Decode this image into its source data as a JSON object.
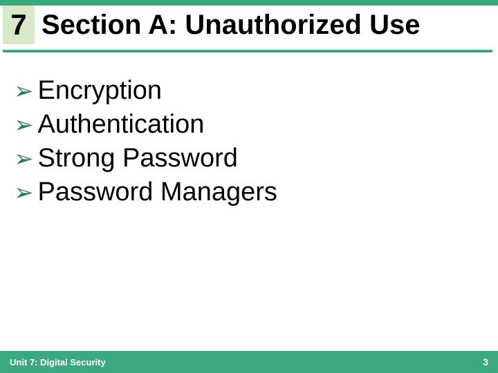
{
  "colors": {
    "top_bar": "#3aa97f",
    "chapter_box_bg": "#d8e9c8",
    "header_line": "#3aa97f",
    "bullet_icon": "#2f7a5d",
    "footer_bg": "#3aa97f",
    "footer_text": "#ffffff"
  },
  "chapter_number": "7",
  "title": "Section A: Unauthorized Use",
  "bullets": [
    "Encryption",
    "Authentication",
    "Strong Password",
    "Password Managers"
  ],
  "footer": {
    "left": "Unit 7: Digital Security",
    "page": "3"
  },
  "bullet_glyph": "➢"
}
